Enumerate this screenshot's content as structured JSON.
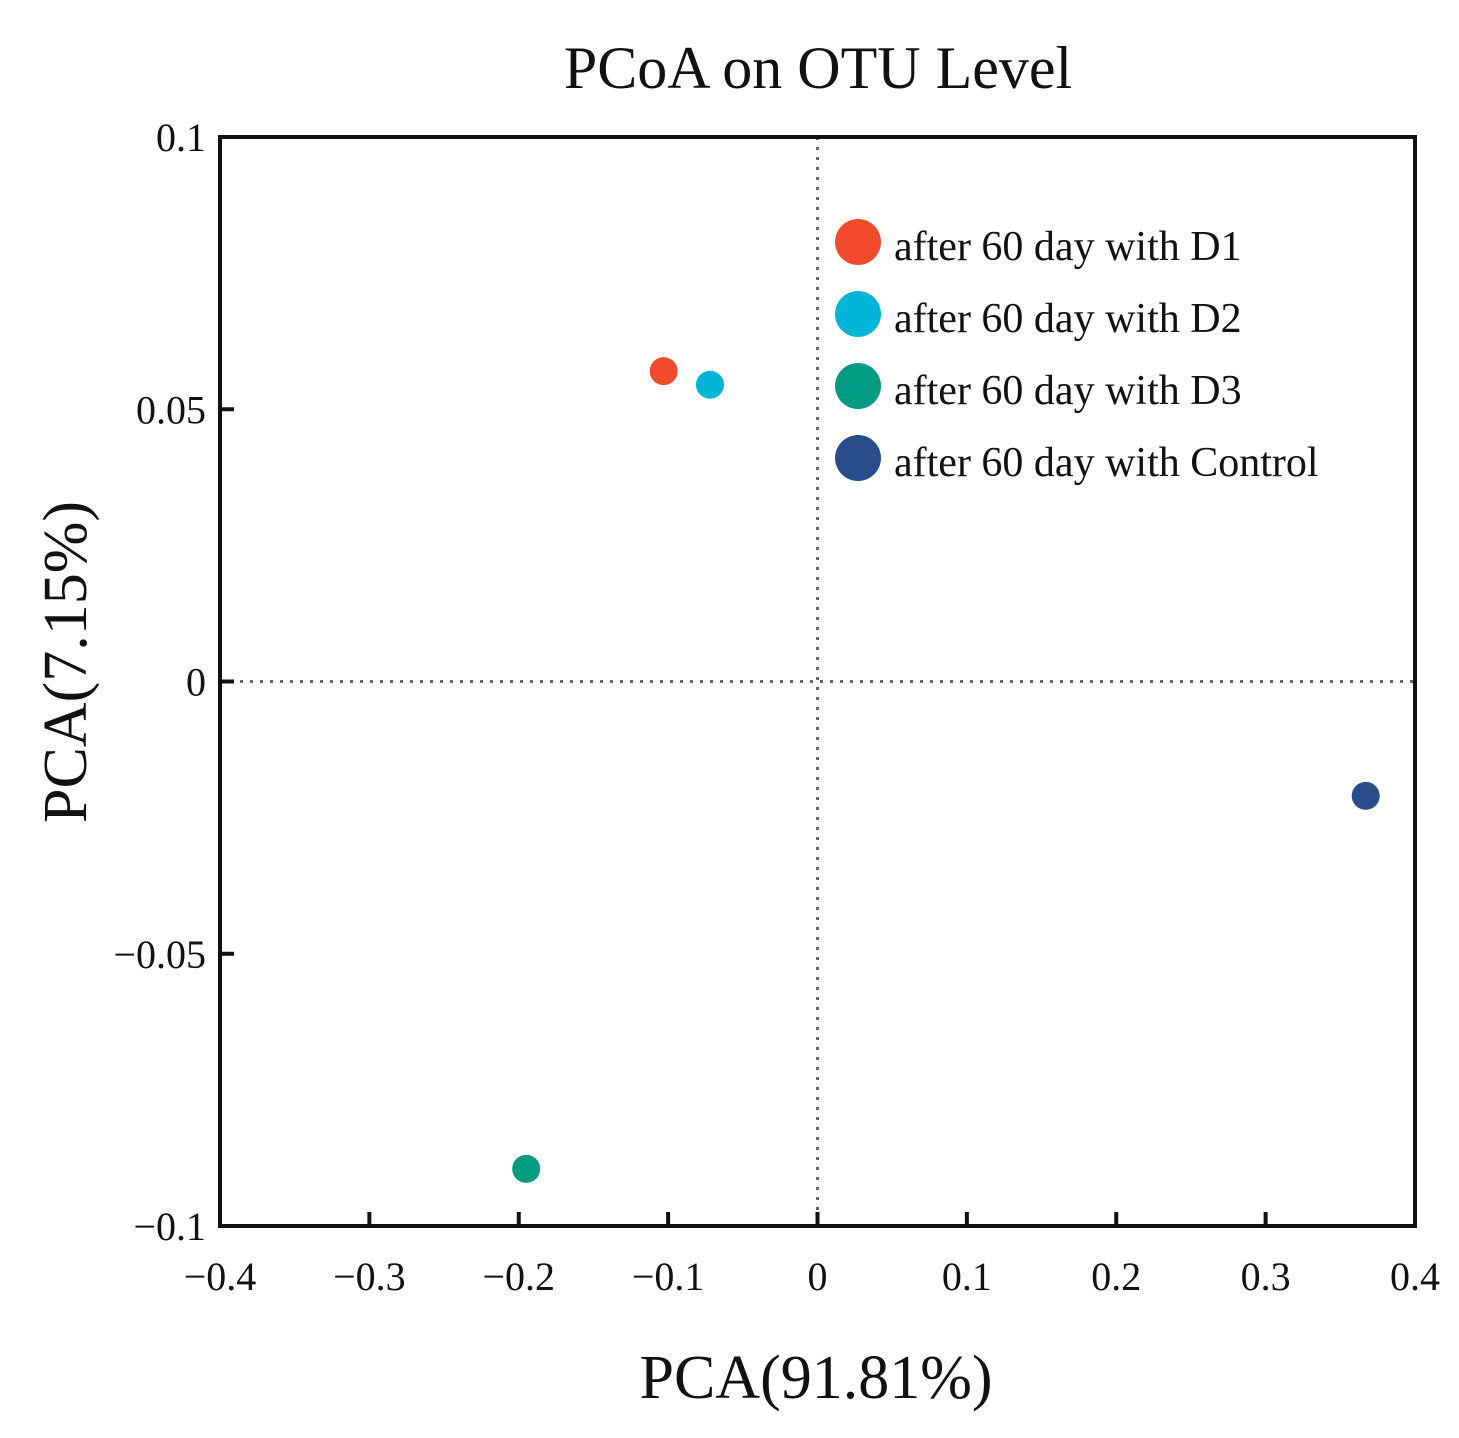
{
  "chart_data": {
    "type": "scatter",
    "title": "PCoA on OTU Level",
    "xlabel": "PCA(91.81%)",
    "ylabel": "PCA(7.15%)",
    "xlim": [
      -0.4,
      0.4
    ],
    "ylim": [
      -0.1,
      0.1
    ],
    "xticks": [
      -0.4,
      -0.3,
      -0.2,
      -0.1,
      0,
      0.1,
      0.2,
      0.3,
      0.4
    ],
    "xtick_labels": [
      "−0.4",
      "−0.3",
      "−0.2",
      "−0.1",
      "0",
      "0.1",
      "0.2",
      "0.3",
      "0.4"
    ],
    "yticks": [
      0.1,
      0.05,
      0,
      -0.05,
      -0.1
    ],
    "ytick_labels": [
      "0.1",
      "0.05",
      "0",
      "−0.05",
      "−0.1"
    ],
    "grid": false,
    "zero_lines": "dotted",
    "legend_position": "top-right",
    "series": [
      {
        "name": "after 60 day with D1",
        "color": "#f24a2d",
        "x": [
          -0.103
        ],
        "y": [
          0.057
        ]
      },
      {
        "name": "after 60 day with D2",
        "color": "#00b5d6",
        "x": [
          -0.072
        ],
        "y": [
          0.0545
        ]
      },
      {
        "name": "after 60 day with D3",
        "color": "#009b82",
        "x": [
          -0.195
        ],
        "y": [
          -0.0895
        ]
      },
      {
        "name": "after 60 day with Control",
        "color": "#284d8a",
        "x": [
          0.367
        ],
        "y": [
          -0.021
        ]
      }
    ]
  }
}
